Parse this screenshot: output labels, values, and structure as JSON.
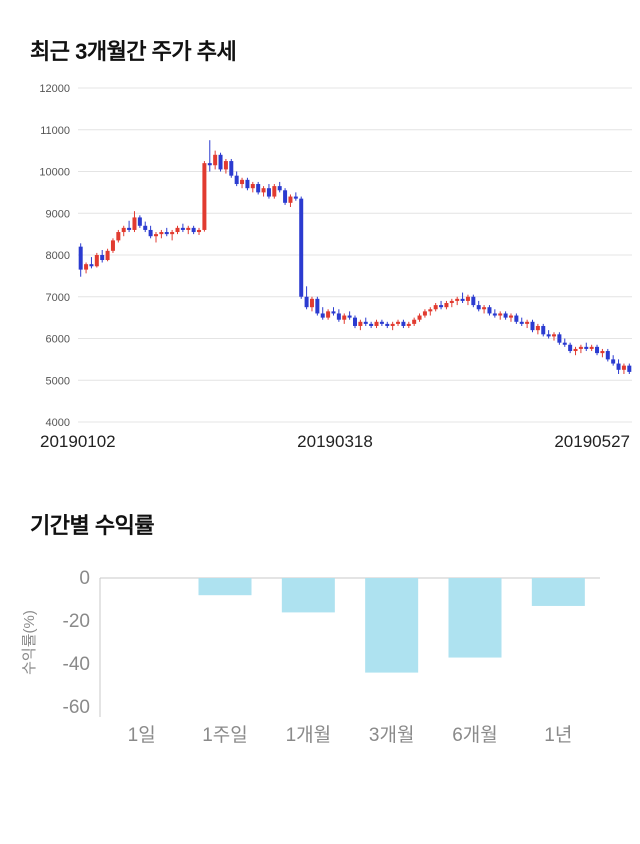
{
  "chart_data": [
    {
      "type": "candlestick",
      "title": "최근 3개월간 주가 추세",
      "ylim": [
        4000,
        12000
      ],
      "yticks": [
        4000,
        5000,
        6000,
        7000,
        8000,
        9000,
        10000,
        11000,
        12000
      ],
      "x_axis_labels": [
        "20190102",
        "20190318",
        "20190527"
      ],
      "grid": true,
      "colors": {
        "up": "#e13b30",
        "down": "#2b3bd0",
        "grid": "#e4e4e4",
        "tick_text": "#555555"
      },
      "candles": [
        [
          8200,
          8280,
          7480,
          7650
        ],
        [
          7650,
          7820,
          7560,
          7780
        ],
        [
          7780,
          7950,
          7680,
          7730
        ],
        [
          7730,
          8050,
          7700,
          8000
        ],
        [
          8000,
          8120,
          7820,
          7880
        ],
        [
          7880,
          8150,
          7850,
          8100
        ],
        [
          8100,
          8400,
          8050,
          8350
        ],
        [
          8350,
          8600,
          8300,
          8550
        ],
        [
          8550,
          8700,
          8450,
          8650
        ],
        [
          8650,
          8820,
          8550,
          8600
        ],
        [
          8600,
          9050,
          8550,
          8900
        ],
        [
          8900,
          8950,
          8650,
          8700
        ],
        [
          8700,
          8800,
          8550,
          8600
        ],
        [
          8600,
          8700,
          8400,
          8450
        ],
        [
          8450,
          8550,
          8300,
          8500
        ],
        [
          8500,
          8600,
          8400,
          8550
        ],
        [
          8550,
          8650,
          8450,
          8500
        ],
        [
          8500,
          8600,
          8350,
          8550
        ],
        [
          8550,
          8700,
          8500,
          8650
        ],
        [
          8650,
          8750,
          8550,
          8600
        ],
        [
          8600,
          8700,
          8500,
          8650
        ],
        [
          8650,
          8700,
          8500,
          8550
        ],
        [
          8550,
          8650,
          8480,
          8600
        ],
        [
          8600,
          10250,
          8560,
          10200
        ],
        [
          10200,
          10750,
          10000,
          10150
        ],
        [
          10150,
          10500,
          10050,
          10400
        ],
        [
          10400,
          10450,
          10000,
          10050
        ],
        [
          10050,
          10300,
          9950,
          10250
        ],
        [
          10250,
          10300,
          9850,
          9900
        ],
        [
          9900,
          10000,
          9650,
          9700
        ],
        [
          9700,
          9850,
          9600,
          9800
        ],
        [
          9800,
          9850,
          9550,
          9600
        ],
        [
          9600,
          9750,
          9500,
          9700
        ],
        [
          9700,
          9750,
          9450,
          9500
        ],
        [
          9500,
          9650,
          9400,
          9600
        ],
        [
          9600,
          9700,
          9350,
          9400
        ],
        [
          9400,
          9700,
          9350,
          9650
        ],
        [
          9650,
          9750,
          9500,
          9550
        ],
        [
          9550,
          9600,
          9200,
          9250
        ],
        [
          9250,
          9450,
          9150,
          9400
        ],
        [
          9400,
          9500,
          9300,
          9350
        ],
        [
          9350,
          9400,
          6950,
          7000
        ],
        [
          7000,
          7250,
          6700,
          6750
        ],
        [
          6750,
          7000,
          6650,
          6950
        ],
        [
          6950,
          7000,
          6550,
          6600
        ],
        [
          6600,
          6750,
          6450,
          6500
        ],
        [
          6500,
          6700,
          6450,
          6650
        ],
        [
          6650,
          6750,
          6550,
          6600
        ],
        [
          6600,
          6700,
          6400,
          6450
        ],
        [
          6450,
          6600,
          6350,
          6550
        ],
        [
          6550,
          6650,
          6450,
          6500
        ],
        [
          6500,
          6550,
          6250,
          6300
        ],
        [
          6300,
          6450,
          6200,
          6400
        ],
        [
          6400,
          6500,
          6300,
          6350
        ],
        [
          6350,
          6400,
          6250,
          6300
        ],
        [
          6300,
          6450,
          6250,
          6400
        ],
        [
          6400,
          6450,
          6300,
          6350
        ],
        [
          6350,
          6400,
          6250,
          6300
        ],
        [
          6300,
          6400,
          6200,
          6350
        ],
        [
          6350,
          6450,
          6300,
          6400
        ],
        [
          6400,
          6450,
          6250,
          6300
        ],
        [
          6300,
          6400,
          6250,
          6350
        ],
        [
          6350,
          6500,
          6300,
          6450
        ],
        [
          6450,
          6600,
          6400,
          6550
        ],
        [
          6550,
          6700,
          6500,
          6650
        ],
        [
          6650,
          6750,
          6550,
          6700
        ],
        [
          6700,
          6850,
          6650,
          6800
        ],
        [
          6800,
          6900,
          6700,
          6750
        ],
        [
          6750,
          6900,
          6700,
          6850
        ],
        [
          6850,
          6950,
          6750,
          6900
        ],
        [
          6900,
          7000,
          6800,
          6950
        ],
        [
          6950,
          7100,
          6850,
          6900
        ],
        [
          6900,
          7050,
          6800,
          7000
        ],
        [
          7000,
          7050,
          6750,
          6800
        ],
        [
          6800,
          6900,
          6650,
          6700
        ],
        [
          6700,
          6800,
          6600,
          6750
        ],
        [
          6750,
          6800,
          6550,
          6600
        ],
        [
          6600,
          6700,
          6500,
          6550
        ],
        [
          6550,
          6650,
          6450,
          6600
        ],
        [
          6600,
          6650,
          6450,
          6500
        ],
        [
          6500,
          6600,
          6400,
          6550
        ],
        [
          6550,
          6600,
          6350,
          6400
        ],
        [
          6400,
          6500,
          6300,
          6350
        ],
        [
          6350,
          6450,
          6250,
          6400
        ],
        [
          6400,
          6450,
          6150,
          6200
        ],
        [
          6200,
          6350,
          6100,
          6300
        ],
        [
          6300,
          6350,
          6050,
          6100
        ],
        [
          6100,
          6200,
          6000,
          6050
        ],
        [
          6050,
          6150,
          5950,
          6100
        ],
        [
          6100,
          6150,
          5850,
          5900
        ],
        [
          5900,
          6000,
          5800,
          5850
        ],
        [
          5850,
          5900,
          5650,
          5700
        ],
        [
          5700,
          5800,
          5600,
          5750
        ],
        [
          5750,
          5850,
          5650,
          5800
        ],
        [
          5800,
          5900,
          5700,
          5750
        ],
        [
          5750,
          5850,
          5700,
          5800
        ],
        [
          5800,
          5850,
          5600,
          5650
        ],
        [
          5650,
          5750,
          5550,
          5700
        ],
        [
          5700,
          5750,
          5450,
          5500
        ],
        [
          5500,
          5600,
          5350,
          5400
        ],
        [
          5400,
          5500,
          5150,
          5250
        ],
        [
          5250,
          5400,
          5150,
          5350
        ],
        [
          5350,
          5400,
          5150,
          5200
        ]
      ]
    },
    {
      "type": "bar",
      "title": "기간별 수익률",
      "ylabel": "수익률(%)",
      "categories": [
        "1일",
        "1주일",
        "1개월",
        "3개월",
        "6개월",
        "1년"
      ],
      "values": [
        0,
        -8,
        -16,
        -44,
        -37,
        -13
      ],
      "ylim": [
        -60,
        0
      ],
      "yticks": [
        0,
        -20,
        -40,
        -60
      ],
      "grid": false,
      "bar_color": "#aee2f0",
      "axis_color": "#c8c8c8",
      "text_color": "#8a8a8a"
    }
  ]
}
